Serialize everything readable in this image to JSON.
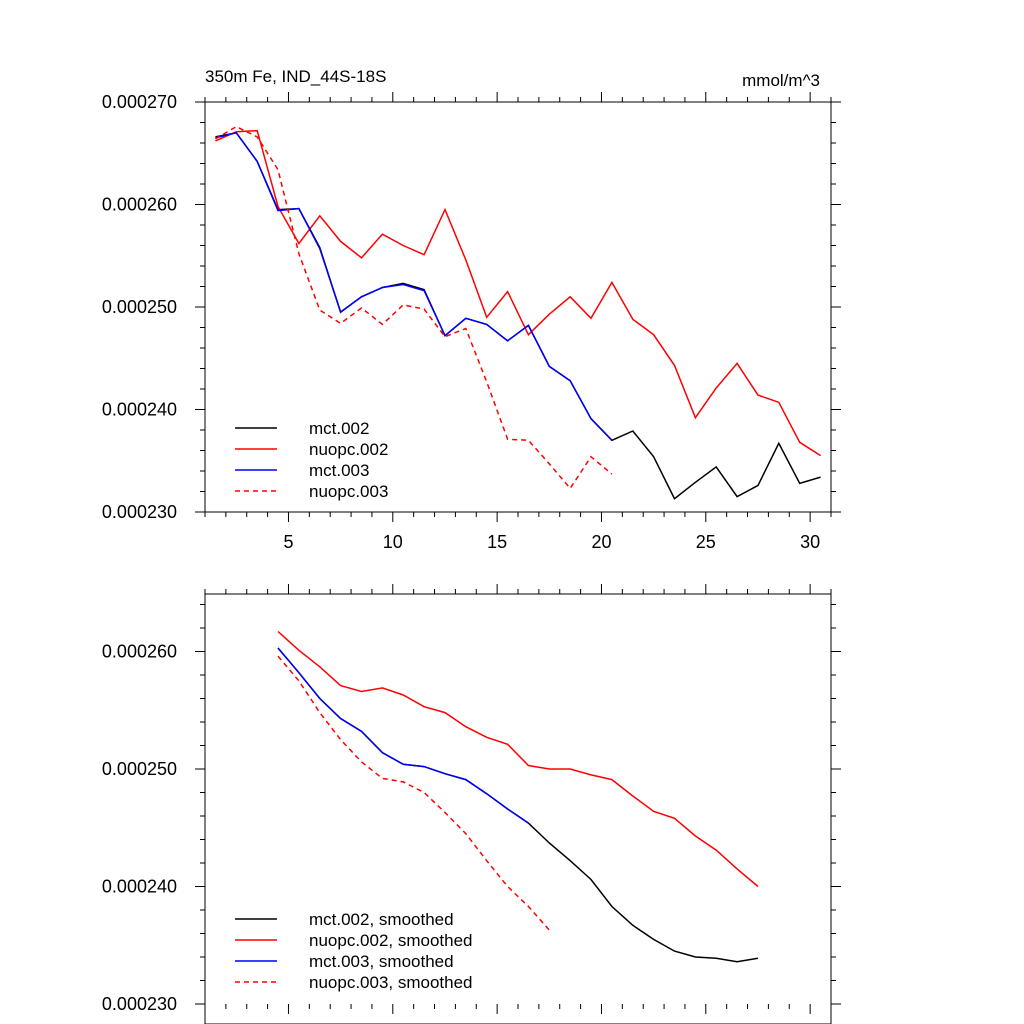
{
  "chart_data": [
    {
      "type": "line",
      "title": "350m Fe, IND_44S-18S",
      "units": "mmol/m^3",
      "xlabel": "",
      "ylabel": "",
      "xlim": [
        1,
        31
      ],
      "ylim": [
        0.00023,
        0.00027
      ],
      "x_ticks": [
        5,
        10,
        15,
        20,
        25,
        30
      ],
      "x_tick_labels": [
        "5",
        "10",
        "15",
        "20",
        "25",
        "30"
      ],
      "y_ticks": [
        0.00023,
        0.00024,
        0.00025,
        0.00026,
        0.00027
      ],
      "y_tick_labels": [
        "0.000230",
        "0.000240",
        "0.000250",
        "0.000260",
        "0.000270"
      ],
      "legend_position": "bottom-left",
      "series": [
        {
          "name": "mct.002",
          "color": "#000000",
          "dash": "solid",
          "x": [
            1.5,
            2.5,
            3.5,
            4.5,
            5.5,
            6.5,
            7.5,
            8.5,
            9.5,
            10.5,
            11.5,
            12.5,
            13.5,
            14.5,
            15.5,
            16.5,
            17.5,
            18.5,
            19.5,
            20.5,
            21.5,
            22.5,
            23.5,
            24.5,
            25.5,
            26.5,
            27.5,
            28.5,
            29.5,
            30.5
          ],
          "values": [
            0.0002666,
            0.000267,
            0.0002642,
            0.0002595,
            0.0002596,
            0.0002558,
            0.0002495,
            0.000251,
            0.0002519,
            0.0002523,
            0.0002517,
            0.0002472,
            0.0002489,
            0.0002483,
            0.0002467,
            0.0002482,
            0.0002442,
            0.0002428,
            0.0002391,
            0.000237,
            0.0002379,
            0.0002354,
            0.0002313,
            0.0002329,
            0.0002344,
            0.0002315,
            0.0002326,
            0.0002367,
            0.0002328,
            0.0002334
          ]
        },
        {
          "name": "nuopc.002",
          "color": "#ff0000",
          "dash": "solid",
          "x": [
            1.5,
            2.5,
            3.5,
            4.5,
            5.5,
            6.5,
            7.5,
            8.5,
            9.5,
            10.5,
            11.5,
            12.5,
            13.5,
            14.5,
            15.5,
            16.5,
            17.5,
            18.5,
            19.5,
            20.5,
            21.5,
            22.5,
            23.5,
            24.5,
            25.5,
            26.5,
            27.5,
            28.5,
            29.5,
            30.5
          ],
          "values": [
            0.0002662,
            0.0002671,
            0.0002672,
            0.0002598,
            0.0002562,
            0.0002589,
            0.0002564,
            0.0002548,
            0.0002571,
            0.000256,
            0.0002551,
            0.0002595,
            0.0002546,
            0.000249,
            0.0002515,
            0.0002473,
            0.0002493,
            0.000251,
            0.0002489,
            0.0002524,
            0.0002488,
            0.0002473,
            0.0002443,
            0.0002392,
            0.0002421,
            0.0002445,
            0.0002414,
            0.0002407,
            0.0002368,
            0.0002355
          ]
        },
        {
          "name": "mct.003",
          "color": "#0000ff",
          "dash": "solid",
          "x": [
            1.5,
            2.5,
            3.5,
            4.5,
            5.5,
            6.5,
            7.5,
            8.5,
            9.5,
            10.5,
            11.5,
            12.5,
            13.5,
            14.5,
            15.5,
            16.5,
            17.5,
            18.5,
            19.5,
            20.5
          ],
          "values": [
            0.0002665,
            0.000267,
            0.0002642,
            0.0002594,
            0.0002596,
            0.0002557,
            0.0002495,
            0.000251,
            0.0002519,
            0.0002522,
            0.0002516,
            0.0002472,
            0.0002489,
            0.0002483,
            0.0002467,
            0.0002482,
            0.0002442,
            0.0002428,
            0.0002391,
            0.000237
          ]
        },
        {
          "name": "nuopc.003",
          "color": "#ff0000",
          "dash": "dashed",
          "x": [
            1.5,
            2.5,
            3.5,
            4.5,
            5.5,
            6.5,
            7.5,
            8.5,
            9.5,
            10.5,
            11.5,
            12.5,
            13.5,
            14.5,
            15.5,
            16.5,
            17.5,
            18.5,
            19.5,
            20.5
          ],
          "values": [
            0.0002664,
            0.0002676,
            0.0002666,
            0.0002634,
            0.0002552,
            0.0002497,
            0.0002484,
            0.0002499,
            0.0002483,
            0.0002502,
            0.0002498,
            0.0002471,
            0.0002479,
            0.0002427,
            0.0002371,
            0.000237,
            0.0002347,
            0.0002323,
            0.0002354,
            0.0002337
          ]
        }
      ]
    },
    {
      "type": "line",
      "title": "",
      "xlim": [
        1,
        31
      ],
      "ylim": [
        0.00023,
        0.000265
      ],
      "x_ticks": [
        5,
        10,
        15,
        20,
        25,
        30
      ],
      "y_ticks": [
        0.00023,
        0.00024,
        0.00025,
        0.00026
      ],
      "y_tick_labels": [
        "0.000230",
        "0.000240",
        "0.000250",
        "0.000260"
      ],
      "legend_position": "bottom-left",
      "series": [
        {
          "name": "mct.002, smoothed",
          "color": "#000000",
          "dash": "solid",
          "x": [
            4.5,
            5.5,
            6.5,
            7.5,
            8.5,
            9.5,
            10.5,
            11.5,
            12.5,
            13.5,
            14.5,
            15.5,
            16.5,
            17.5,
            18.5,
            19.5,
            20.5,
            21.5,
            22.5,
            23.5,
            24.5,
            25.5,
            26.5,
            27.5
          ],
          "values": [
            0.0002603,
            0.0002582,
            0.000256,
            0.0002543,
            0.0002532,
            0.0002514,
            0.0002504,
            0.0002502,
            0.0002496,
            0.0002491,
            0.0002479,
            0.0002466,
            0.0002454,
            0.0002437,
            0.0002422,
            0.0002406,
            0.0002383,
            0.0002367,
            0.0002355,
            0.0002345,
            0.000234,
            0.0002339,
            0.0002336,
            0.0002339
          ]
        },
        {
          "name": "nuopc.002, smoothed",
          "color": "#ff0000",
          "dash": "solid",
          "x": [
            4.5,
            5.5,
            6.5,
            7.5,
            8.5,
            9.5,
            10.5,
            11.5,
            12.5,
            13.5,
            14.5,
            15.5,
            16.5,
            17.5,
            18.5,
            19.5,
            20.5,
            21.5,
            22.5,
            23.5,
            24.5,
            25.5,
            26.5,
            27.5
          ],
          "values": [
            0.0002617,
            0.0002601,
            0.0002587,
            0.0002571,
            0.0002566,
            0.0002569,
            0.0002563,
            0.0002553,
            0.0002548,
            0.0002536,
            0.0002527,
            0.0002521,
            0.0002503,
            0.00025,
            0.00025,
            0.0002495,
            0.0002491,
            0.0002477,
            0.0002464,
            0.0002458,
            0.0002443,
            0.0002431,
            0.0002415,
            0.00024
          ]
        },
        {
          "name": "mct.003, smoothed",
          "color": "#0000ff",
          "dash": "solid",
          "x": [
            4.5,
            5.5,
            6.5,
            7.5,
            8.5,
            9.5,
            10.5,
            11.5,
            12.5,
            13.5,
            14.5,
            15.5,
            16.5
          ],
          "values": [
            0.0002603,
            0.0002582,
            0.000256,
            0.0002543,
            0.0002532,
            0.0002514,
            0.0002504,
            0.0002502,
            0.0002496,
            0.0002491,
            0.0002479,
            0.0002466,
            0.0002454
          ]
        },
        {
          "name": "nuopc.003, smoothed",
          "color": "#ff0000",
          "dash": "dashed",
          "x": [
            4.5,
            5.5,
            6.5,
            7.5,
            8.5,
            9.5,
            10.5,
            11.5,
            12.5,
            13.5,
            14.5,
            15.5,
            16.5,
            17.5
          ],
          "values": [
            0.0002596,
            0.0002575,
            0.0002548,
            0.0002525,
            0.0002506,
            0.0002492,
            0.0002489,
            0.000248,
            0.0002463,
            0.0002445,
            0.0002422,
            0.00024,
            0.0002383,
            0.0002363
          ]
        }
      ]
    }
  ]
}
